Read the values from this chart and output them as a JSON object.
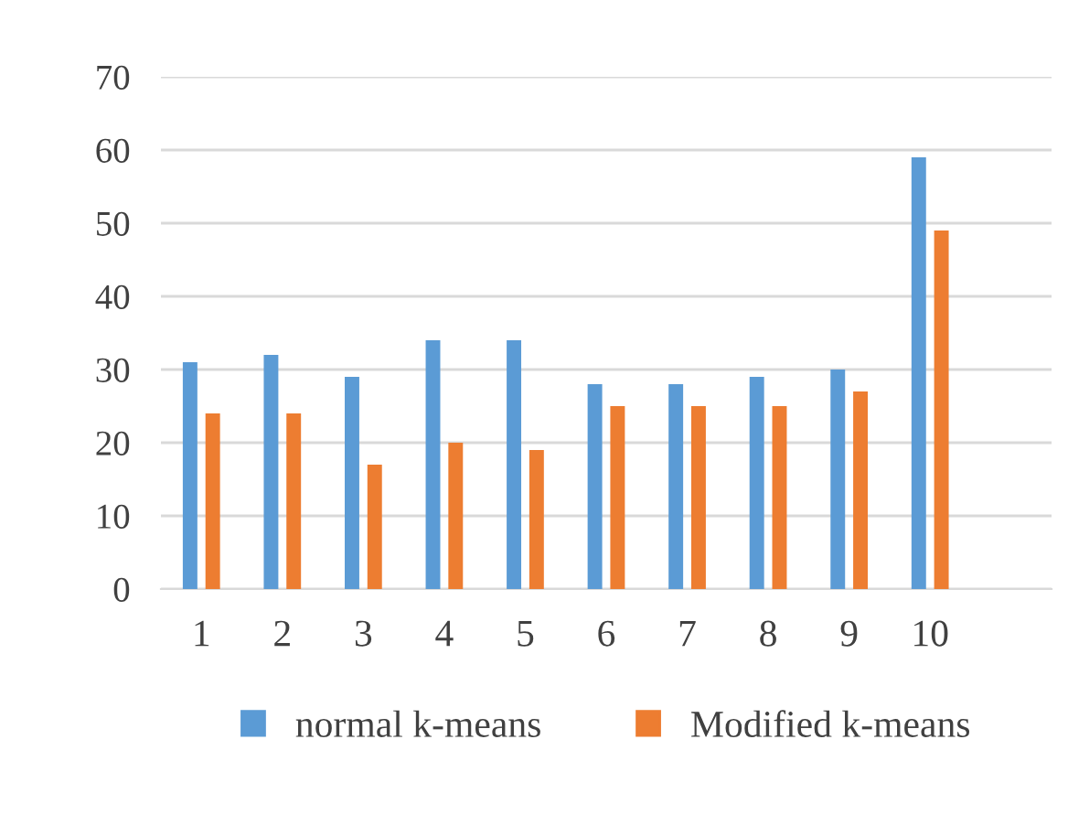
{
  "chart_data": {
    "type": "bar",
    "categories": [
      "1",
      "2",
      "3",
      "4",
      "5",
      "6",
      "7",
      "8",
      "9",
      "10",
      null
    ],
    "series": [
      {
        "name": "normal k-means",
        "color": "#5b9bd5",
        "values": [
          31,
          32,
          29,
          34,
          34,
          28,
          28,
          29,
          30,
          59,
          null
        ]
      },
      {
        "name": "Modified k-means",
        "color": "#ed7d31",
        "values": [
          24,
          24,
          17,
          20,
          19,
          25,
          25,
          25,
          27,
          49,
          null
        ]
      }
    ],
    "ylim": [
      0,
      70
    ],
    "yticks": [
      0,
      10,
      20,
      30,
      40,
      50,
      60,
      70
    ],
    "grid": "y",
    "legend": "bottom"
  }
}
